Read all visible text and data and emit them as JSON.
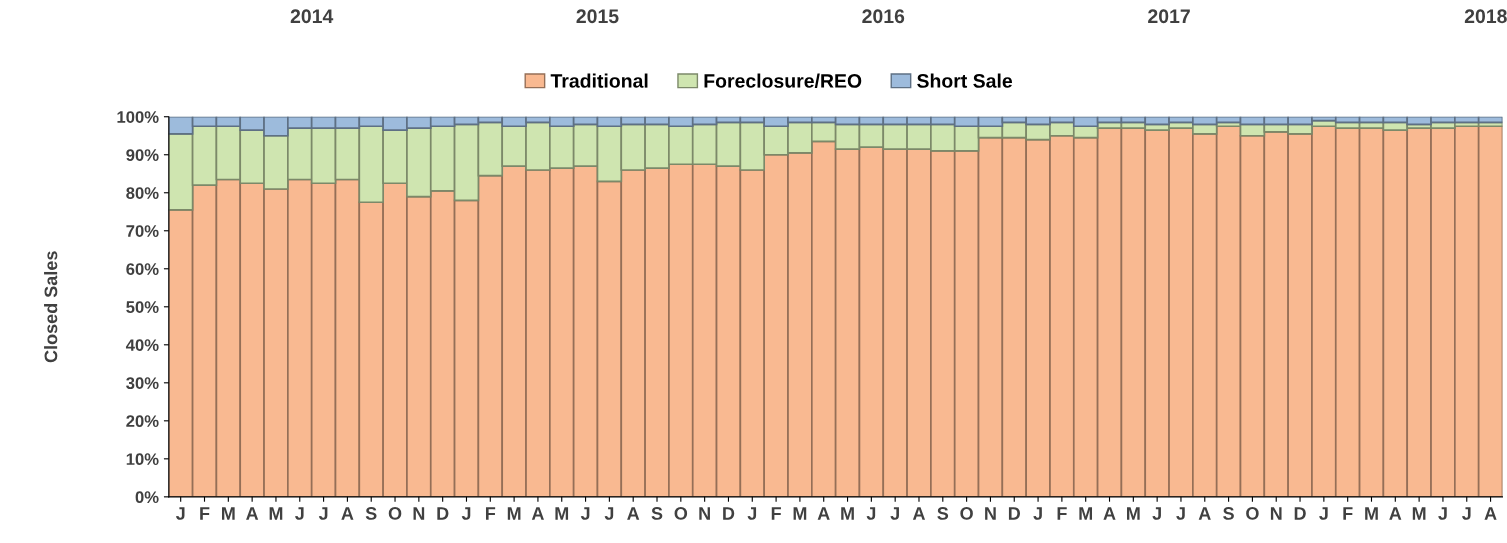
{
  "chart_data": {
    "type": "bar",
    "stacked": true,
    "ylabel": "Closed Sales",
    "categories": [
      "J",
      "F",
      "M",
      "A",
      "M",
      "J",
      "J",
      "A",
      "S",
      "O",
      "N",
      "D",
      "J",
      "F",
      "M",
      "A",
      "M",
      "J",
      "J",
      "A",
      "S",
      "O",
      "N",
      "D",
      "J",
      "F",
      "M",
      "A",
      "M",
      "J",
      "J",
      "A",
      "S",
      "O",
      "N",
      "D",
      "J",
      "F",
      "M",
      "A",
      "M",
      "J",
      "J",
      "A",
      "S",
      "O",
      "N",
      "D",
      "J",
      "F",
      "M",
      "A",
      "M",
      "J",
      "J",
      "A"
    ],
    "series": [
      {
        "name": "Traditional",
        "color": "#f9b991",
        "values": [
          75.5,
          82,
          83.5,
          82.5,
          81,
          83.5,
          82.5,
          83.5,
          77.5,
          82.5,
          79,
          80.5,
          78,
          84.5,
          87,
          86,
          86.5,
          87,
          83,
          86,
          86.5,
          87.5,
          87.5,
          87,
          86,
          90,
          90.5,
          93.5,
          91.5,
          92,
          91.5,
          91.5,
          91,
          91,
          94.5,
          94.5,
          94,
          95,
          94.5,
          97,
          97,
          96.5,
          97,
          95.5,
          97.5,
          95,
          96,
          95.5,
          97.5,
          97,
          97,
          96.5,
          97,
          97,
          97.5,
          97.5
        ]
      },
      {
        "name": "Foreclosure/REO",
        "color": "#cfe5b0",
        "values": [
          20,
          15.5,
          14,
          14,
          14,
          13.5,
          14.5,
          13.5,
          20,
          14,
          18,
          17,
          20,
          14,
          10.5,
          12.5,
          11,
          11,
          14.5,
          12,
          11.5,
          10,
          10.5,
          11.5,
          12.5,
          7.5,
          8,
          5,
          6.5,
          6,
          6.5,
          6.5,
          7,
          6.5,
          3,
          4,
          4,
          3.5,
          3,
          1.5,
          1.5,
          1.5,
          1.5,
          2.5,
          1,
          3,
          2,
          2.5,
          1.5,
          1.5,
          1.5,
          2,
          1,
          1.5,
          1,
          1
        ]
      },
      {
        "name": "Short Sale",
        "color": "#9dbbdc",
        "values": [
          4.5,
          2.5,
          2.5,
          3.5,
          5,
          3,
          3,
          3,
          2.5,
          3.5,
          3,
          2.5,
          2,
          1.5,
          2.5,
          1.5,
          2.5,
          2,
          2.5,
          2,
          2,
          2.5,
          2,
          1.5,
          1.5,
          2.5,
          1.5,
          1.5,
          2,
          2,
          2,
          2,
          2,
          2.5,
          2.5,
          1.5,
          2,
          1.5,
          2.5,
          1.5,
          1.5,
          2,
          1.5,
          2,
          1.5,
          2,
          2,
          2,
          1,
          1.5,
          1.5,
          1.5,
          2,
          1.5,
          1.5,
          1.5
        ]
      }
    ],
    "ylim": [
      0,
      100
    ],
    "yticks": [
      {
        "value": 0,
        "label": "0%"
      },
      {
        "value": 10,
        "label": "10%"
      },
      {
        "value": 20,
        "label": "20%"
      },
      {
        "value": 30,
        "label": "30%"
      },
      {
        "value": 40,
        "label": "40%"
      },
      {
        "value": 50,
        "label": "50%"
      },
      {
        "value": 60,
        "label": "60%"
      },
      {
        "value": 70,
        "label": "70%"
      },
      {
        "value": 80,
        "label": "80%"
      },
      {
        "value": 90,
        "label": "90%"
      },
      {
        "value": 100,
        "label": "100%"
      }
    ],
    "annotations": [
      "2014",
      "2015",
      "2016",
      "2017",
      "2018"
    ],
    "legend": "top",
    "grid": false
  }
}
